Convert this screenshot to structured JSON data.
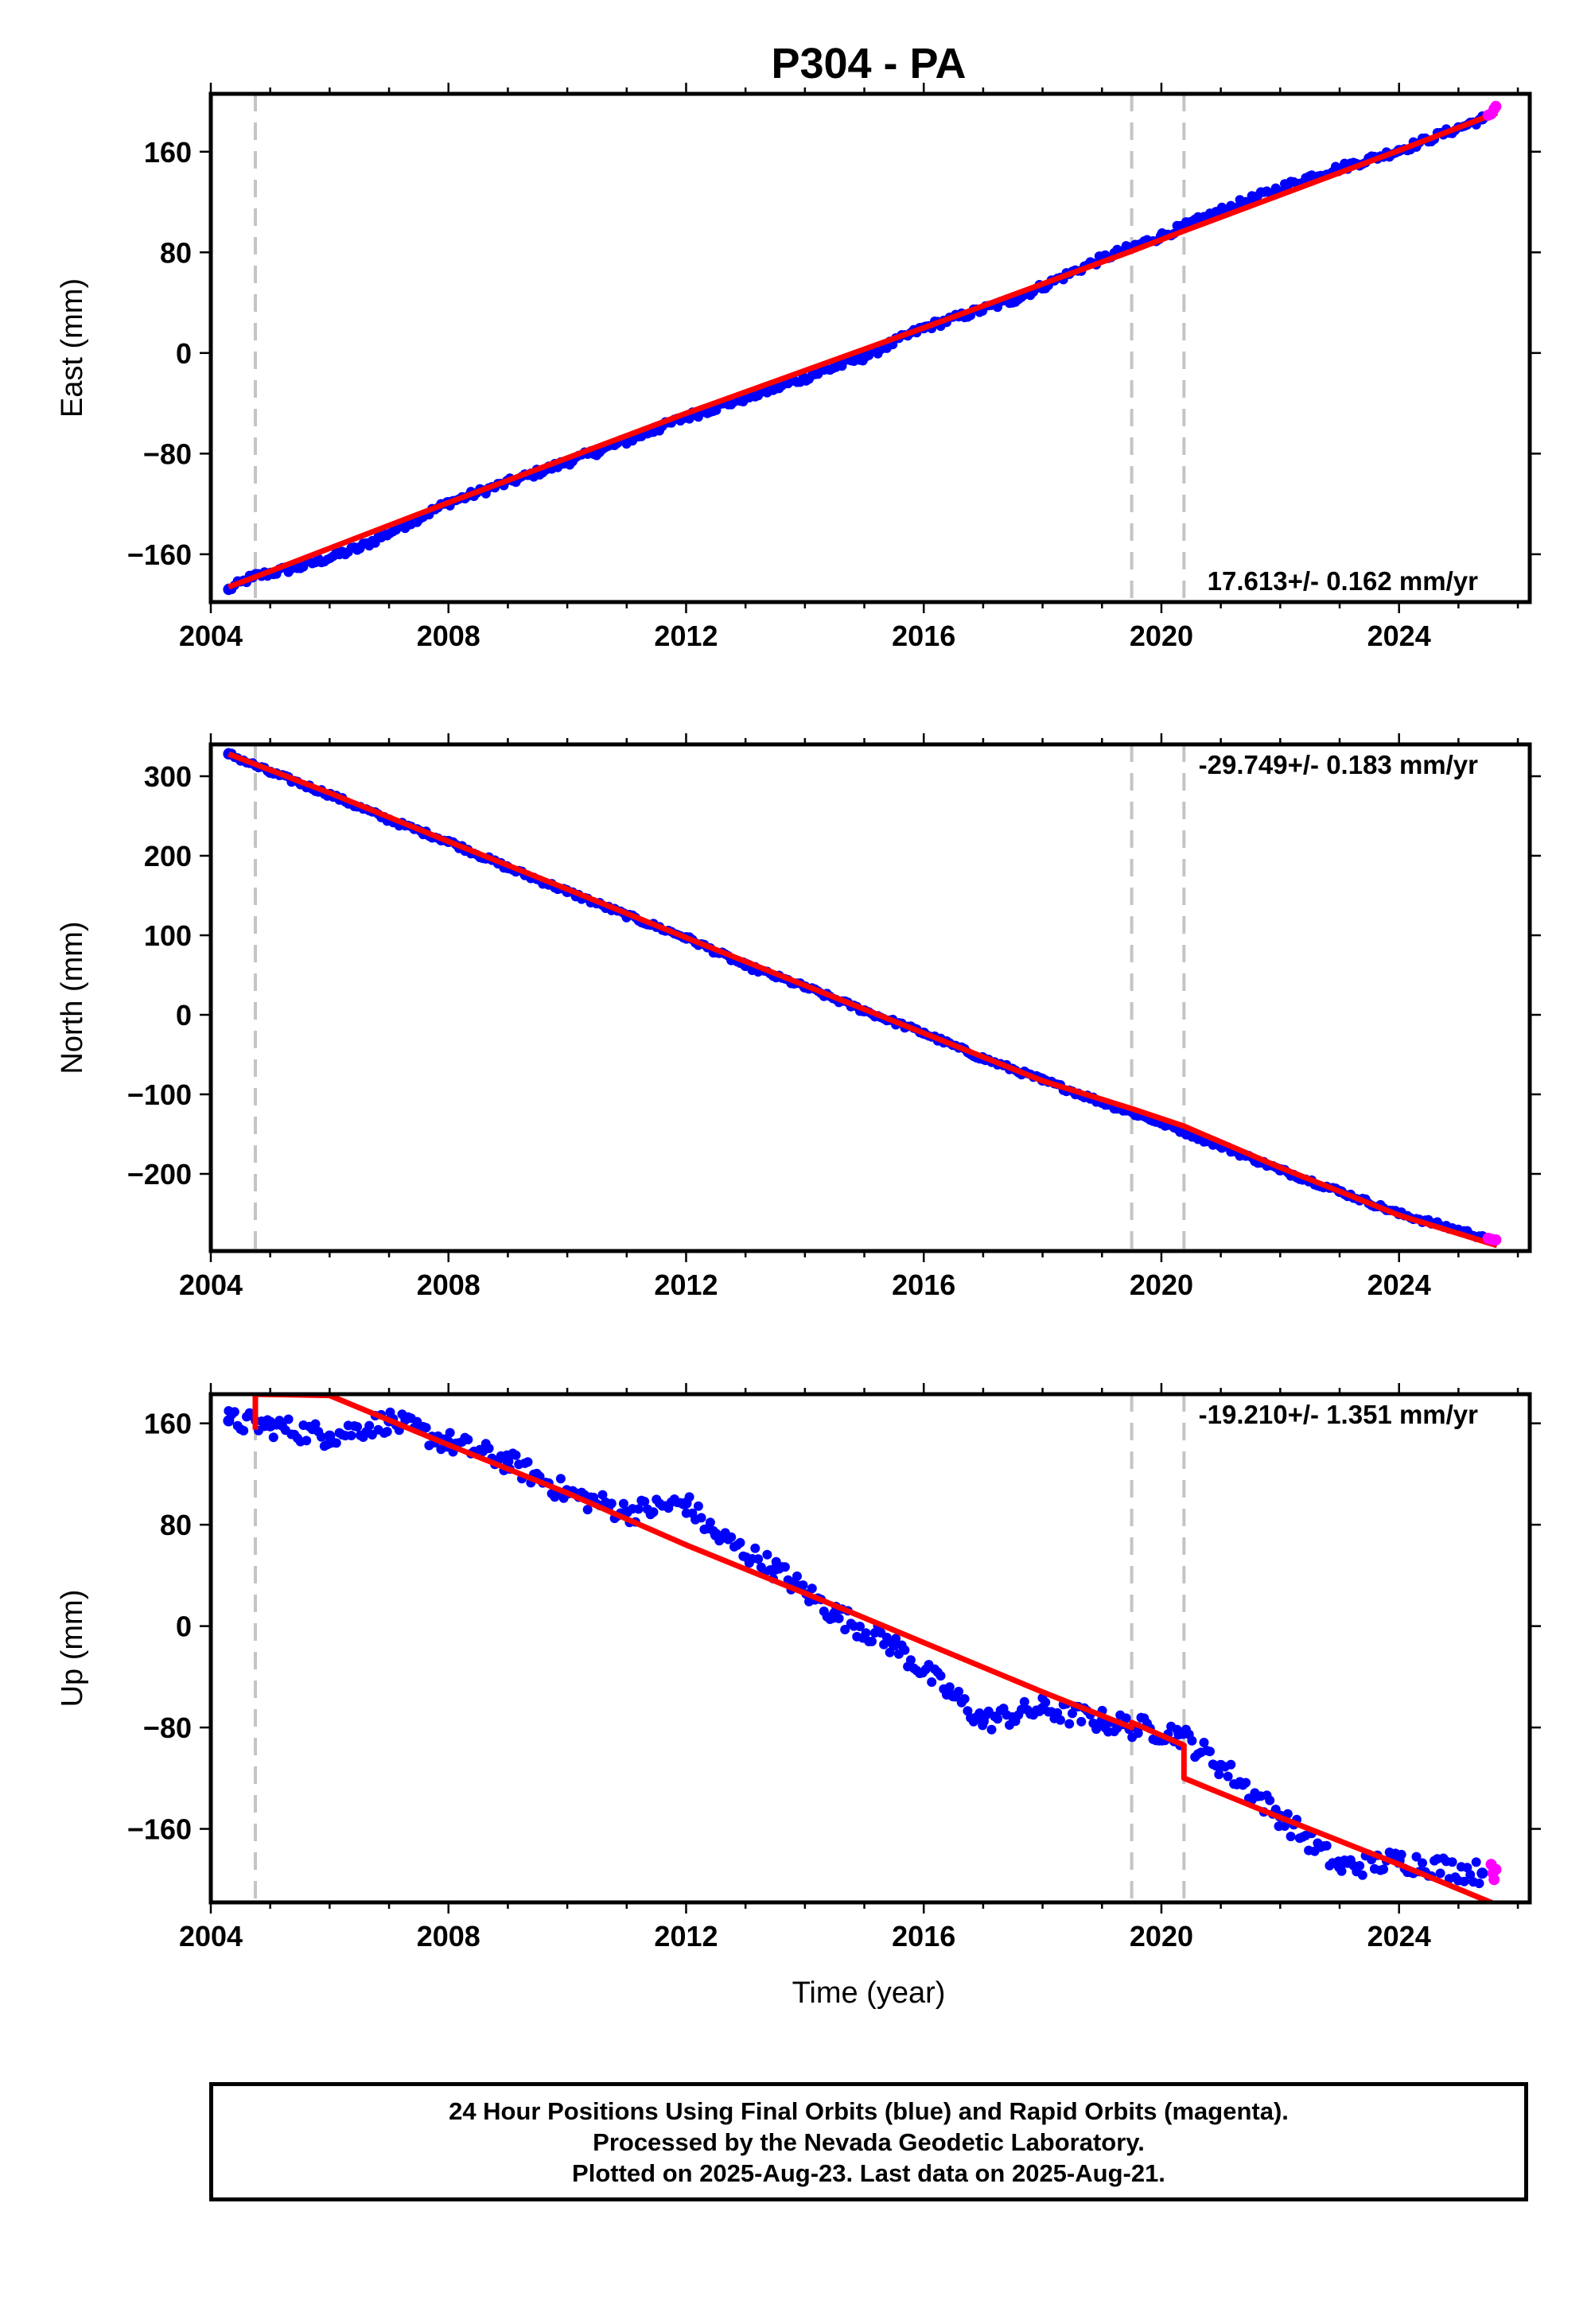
{
  "chart_data": {
    "type": "scatter",
    "title": "P304 - PA",
    "xlabel": "Time (year)",
    "xlim": [
      2004.0,
      2026.2
    ],
    "xticks": [
      "2004",
      "2008",
      "2012",
      "2016",
      "2020",
      "2024"
    ],
    "colors": {
      "final": "#0000ff",
      "rapid": "#ff00ff",
      "model": "#ff0000",
      "steps": "#c4c4c4"
    },
    "step_epochs": [
      2004.75,
      2019.5,
      2020.38
    ],
    "panels": [
      {
        "name": "east",
        "ylabel": "East (mm)",
        "ylim": [
          -198,
          206
        ],
        "yticks": [
          "−160",
          "−80",
          "0",
          "80",
          "160"
        ],
        "ytick_values": [
          -160,
          -80,
          0,
          80,
          160
        ],
        "rate": "17.613+/- 0.162 mm/yr",
        "rate_position": "bottom-right",
        "model": {
          "x": [
            2004.3,
            2004.75,
            2008,
            2012,
            2016,
            2019.5,
            2020.38,
            2024,
            2025.65
          ],
          "y": [
            -186,
            -178,
            -119,
            -48,
            20,
            81,
            97,
            161,
            191
          ]
        },
        "observed_final": {
          "x": [
            2004.3,
            2004.7,
            2005.5,
            2006.5,
            2008,
            2009.5,
            2011,
            2012,
            2013.5,
            2015,
            2016,
            2017.5,
            2019,
            2020,
            2021,
            2022.5,
            2024,
            2025.4
          ],
          "y": [
            -188,
            -178,
            -170,
            -155,
            -119,
            -95,
            -70,
            -51,
            -28,
            -3,
            20,
            42,
            75,
            93,
            113,
            140,
            161,
            186
          ]
        },
        "observed_rapid": {
          "x": [
            2025.5,
            2025.55,
            2025.6,
            2025.63
          ],
          "y": [
            189,
            190,
            194,
            196
          ]
        }
      },
      {
        "name": "north",
        "ylabel": "North (mm)",
        "ylim": [
          -297,
          340
        ],
        "yticks": [
          "−200",
          "−100",
          "0",
          "100",
          "200",
          "300"
        ],
        "ytick_values": [
          -200,
          -100,
          0,
          100,
          200,
          300
        ],
        "rate": "-29.749+/- 0.183 mm/yr",
        "rate_position": "top-right",
        "model": {
          "x": [
            2004.3,
            2004.75,
            2006,
            2008,
            2010,
            2012,
            2014,
            2016,
            2018,
            2019.5,
            2020.38,
            2022,
            2024,
            2025.65
          ],
          "y": [
            328,
            315,
            279,
            218,
            158,
            97,
            37,
            -23,
            -83,
            -118,
            -140,
            -192,
            -252,
            -290
          ]
        },
        "observed_final": {
          "x": [
            2004.3,
            2005,
            2006,
            2007,
            2008,
            2009,
            2010,
            2011,
            2012,
            2013,
            2014,
            2015,
            2016,
            2017,
            2018,
            2019,
            2020,
            2021,
            2022,
            2023,
            2024,
            2025.4
          ],
          "y": [
            328,
            305,
            277,
            245,
            218,
            185,
            155,
            125,
            97,
            62,
            35,
            5,
            -23,
            -55,
            -82,
            -110,
            -136,
            -165,
            -195,
            -222,
            -250,
            -279
          ]
        },
        "observed_rapid": {
          "x": [
            2025.5,
            2025.55,
            2025.6,
            2025.63
          ],
          "y": [
            -281,
            -282,
            -283,
            -283
          ]
        }
      },
      {
        "name": "up",
        "ylabel": "Up (mm)",
        "ylim": [
          -218,
          183
        ],
        "yticks": [
          "−160",
          "−80",
          "0",
          "80",
          "160"
        ],
        "ytick_values": [
          -160,
          -80,
          0,
          80,
          160
        ],
        "rate": "-19.210+/- 1.351 mm/yr",
        "rate_position": "top-right",
        "model": {
          "x": [
            2004.75,
            2004.75,
            2006,
            2008,
            2010,
            2012,
            2014,
            2016,
            2018,
            2019.5,
            2019.5,
            2020.38,
            2020.38,
            2022,
            2024,
            2025.65
          ],
          "y": [
            155,
            183,
            182,
            143,
            105,
            64,
            26,
            -13,
            -52,
            -80,
            -76,
            -94,
            -120,
            -151,
            -188,
            -220
          ]
        },
        "observed_final": {
          "x": [
            2004.3,
            2005,
            2006,
            2007,
            2008,
            2009,
            2010,
            2011,
            2012,
            2012.5,
            2013.5,
            2014.5,
            2015.5,
            2016.5,
            2017,
            2018,
            2019,
            2019.6,
            2020.3,
            2021,
            2022,
            2023,
            2024,
            2025.4
          ],
          "y": [
            162,
            158,
            150,
            162,
            145,
            130,
            105,
            90,
            97,
            72,
            45,
            10,
            -15,
            -55,
            -75,
            -65,
            -75,
            -80,
            -85,
            -110,
            -150,
            -190,
            -185,
            -195
          ]
        },
        "observed_rapid": {
          "x": [
            2025.55,
            2025.58,
            2025.6,
            2025.63
          ],
          "y": [
            -188,
            -195,
            -200,
            -192
          ]
        }
      }
    ]
  },
  "footer": {
    "line1": "24 Hour Positions Using Final Orbits (blue) and Rapid Orbits (magenta).",
    "line2": "Processed by the Nevada Geodetic Laboratory.",
    "line3": "Plotted on 2025-Aug-23. Last data on 2025-Aug-21."
  }
}
